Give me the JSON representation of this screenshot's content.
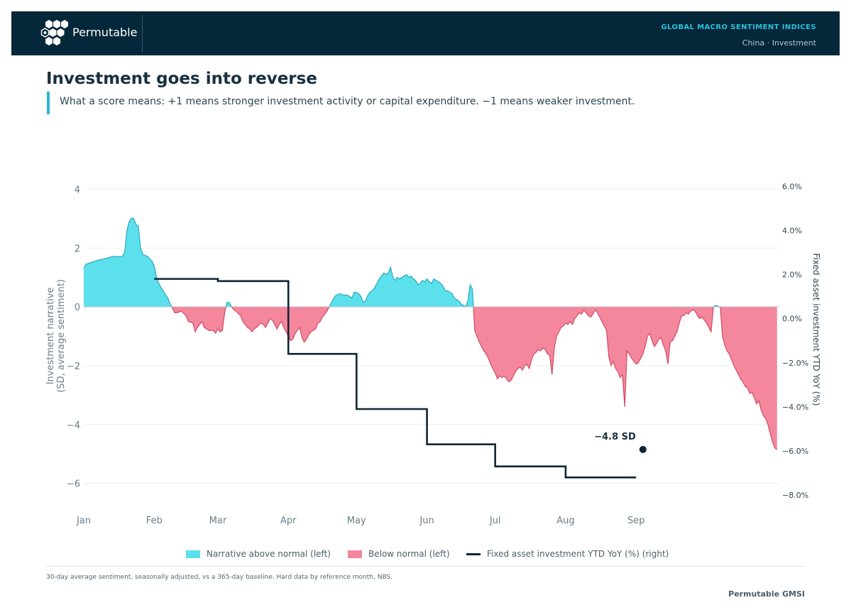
{
  "header": {
    "brand": "Permutable",
    "section_title": "GLOBAL MACRO SENTIMENT INDICES",
    "section_sub": "China · Investment"
  },
  "title": "Investment goes into reverse",
  "subtitle": "What a score means: +1 means stronger investment activity or capital expenditure. −1 means weaker investment.",
  "legend": {
    "above": "Narrative above normal (left)",
    "below": "Below normal (left)",
    "line": "Fixed asset investment YTD YoY (%) (right)"
  },
  "footnote": "30-day average sentiment, seasonally adjusted, vs a 365-day baseline. Hard data by reference month, NBS.",
  "credit": "Permutable GMSI",
  "colors": {
    "above": "#5ce0ec",
    "below": "#f4879b",
    "line": "#0e2635",
    "header_bg": "#05273a",
    "accent": "#2bc0dc"
  },
  "chart_data": {
    "type": "area",
    "ylabel": "Investment narrative\n(SD, average sentiment)",
    "y2label": "Fixed asset investment YTD YoY (%)",
    "ylim": [
      -7,
      5
    ],
    "y2lim": [
      -8.8,
      7.2
    ],
    "yticks": [
      "4",
      "2",
      "0",
      "−2",
      "−4",
      "−6"
    ],
    "y2ticks": [
      "6.0%",
      "4.0%",
      "2.0%",
      "0.0%",
      "−2.0%",
      "−4.0%",
      "−6.0%",
      "−8.0%"
    ],
    "months": [
      "Jan",
      "Feb",
      "Mar",
      "Apr",
      "May",
      "Jun",
      "Jul",
      "Aug",
      "Sep"
    ],
    "grid": true,
    "annotation": {
      "label": "−4.8 SD",
      "day": 246,
      "value": -4.85
    },
    "series": [
      {
        "name": "Narrative above normal (left)",
        "kind": "sentiment",
        "points": [
          [
            0,
            1.3
          ],
          [
            1,
            1.45
          ],
          [
            3,
            1.5
          ],
          [
            6,
            1.58
          ],
          [
            10,
            1.65
          ],
          [
            13,
            1.72
          ],
          [
            15,
            1.7
          ],
          [
            17,
            1.72
          ],
          [
            18,
            1.85
          ],
          [
            19,
            2.6
          ],
          [
            20,
            2.9
          ],
          [
            21,
            3.02
          ],
          [
            22,
            3.0
          ],
          [
            23,
            2.8
          ],
          [
            24,
            2.75
          ],
          [
            25,
            2.0
          ],
          [
            26,
            1.78
          ],
          [
            27,
            1.75
          ],
          [
            28,
            1.72
          ],
          [
            30,
            1.55
          ],
          [
            31,
            1.4
          ],
          [
            32,
            1.0
          ],
          [
            33,
            0.8
          ],
          [
            34,
            0.65
          ],
          [
            35,
            0.55
          ],
          [
            36,
            0.4
          ],
          [
            37,
            0.3
          ],
          [
            38,
            0.1
          ],
          [
            39,
            -0.05
          ],
          [
            40,
            -0.2
          ],
          [
            41,
            -0.2
          ],
          [
            43,
            -0.15
          ],
          [
            45,
            -0.3
          ],
          [
            46,
            -0.5
          ],
          [
            48,
            -0.55
          ],
          [
            49,
            -0.85
          ],
          [
            50,
            -0.7
          ],
          [
            51,
            -0.6
          ],
          [
            52,
            -0.5
          ],
          [
            53,
            -0.7
          ],
          [
            55,
            -0.8
          ],
          [
            57,
            -0.8
          ],
          [
            58,
            -0.9
          ],
          [
            59,
            -0.75
          ],
          [
            60,
            -0.85
          ],
          [
            61,
            -0.8
          ],
          [
            62,
            -0.2
          ],
          [
            63,
            0.15
          ],
          [
            64,
            0.15
          ],
          [
            65,
            0.0
          ],
          [
            66,
            -0.1
          ],
          [
            67,
            -0.15
          ],
          [
            69,
            -0.3
          ],
          [
            70,
            -0.5
          ],
          [
            71,
            -0.6
          ],
          [
            72,
            -0.7
          ],
          [
            73,
            -0.75
          ],
          [
            74,
            -0.85
          ],
          [
            75,
            -0.75
          ],
          [
            76,
            -0.7
          ],
          [
            78,
            -0.55
          ],
          [
            79,
            -0.6
          ],
          [
            80,
            -0.7
          ],
          [
            81,
            -0.55
          ],
          [
            82,
            -0.4
          ],
          [
            83,
            -0.45
          ],
          [
            84,
            -0.6
          ],
          [
            85,
            -0.75
          ],
          [
            86,
            -0.6
          ],
          [
            87,
            -0.5
          ],
          [
            88,
            -0.7
          ],
          [
            89,
            -0.85
          ],
          [
            90,
            -1.0
          ],
          [
            91,
            -1.15
          ],
          [
            92,
            -1.1
          ],
          [
            93,
            -0.9
          ],
          [
            94,
            -0.8
          ],
          [
            95,
            -0.7
          ],
          [
            96,
            -1.05
          ],
          [
            97,
            -1.2
          ],
          [
            98,
            -1.1
          ],
          [
            99,
            -0.95
          ],
          [
            100,
            -0.85
          ],
          [
            101,
            -0.8
          ],
          [
            102,
            -0.75
          ],
          [
            103,
            -0.55
          ],
          [
            104,
            -0.5
          ],
          [
            105,
            -0.35
          ],
          [
            106,
            -0.25
          ],
          [
            107,
            -0.15
          ],
          [
            108,
            0.0
          ],
          [
            109,
            0.15
          ],
          [
            110,
            0.3
          ],
          [
            111,
            0.4
          ],
          [
            112,
            0.42
          ],
          [
            113,
            0.45
          ],
          [
            114,
            0.4
          ],
          [
            116,
            0.4
          ],
          [
            117,
            0.35
          ],
          [
            118,
            0.3
          ],
          [
            119,
            0.5
          ],
          [
            120,
            0.48
          ],
          [
            121,
            0.45
          ],
          [
            122,
            0.35
          ],
          [
            123,
            0.15
          ],
          [
            124,
            0.2
          ],
          [
            125,
            0.4
          ],
          [
            126,
            0.5
          ],
          [
            127,
            0.55
          ],
          [
            128,
            0.65
          ],
          [
            129,
            0.8
          ],
          [
            130,
            0.95
          ],
          [
            131,
            1.05
          ],
          [
            132,
            1.15
          ],
          [
            133,
            1.1
          ],
          [
            134,
            1.15
          ],
          [
            135,
            1.35
          ],
          [
            136,
            1.0
          ],
          [
            137,
            0.9
          ],
          [
            138,
            1.0
          ],
          [
            139,
            0.95
          ],
          [
            140,
            1.0
          ],
          [
            141,
            1.05
          ],
          [
            142,
            1.1
          ],
          [
            143,
            1.0
          ],
          [
            144,
            1.05
          ],
          [
            145,
            0.95
          ],
          [
            146,
            0.9
          ],
          [
            147,
            0.75
          ],
          [
            148,
            0.8
          ],
          [
            149,
            0.9
          ],
          [
            150,
            0.85
          ],
          [
            151,
            0.95
          ],
          [
            152,
            0.85
          ],
          [
            153,
            0.8
          ],
          [
            154,
            0.95
          ],
          [
            155,
            0.9
          ],
          [
            156,
            0.85
          ],
          [
            157,
            0.8
          ],
          [
            158,
            0.7
          ],
          [
            159,
            0.55
          ],
          [
            160,
            0.55
          ],
          [
            161,
            0.5
          ],
          [
            162,
            0.45
          ],
          [
            163,
            0.3
          ],
          [
            164,
            0.25
          ],
          [
            165,
            0.2
          ],
          [
            166,
            0.1
          ],
          [
            167,
            0.05
          ],
          [
            168,
            0.0
          ],
          [
            169,
            0.2
          ],
          [
            170,
            0.75
          ],
          [
            171,
            0.6
          ],
          [
            172,
            -0.8
          ],
          [
            173,
            -1.0
          ],
          [
            174,
            -1.2
          ],
          [
            175,
            -1.35
          ],
          [
            176,
            -1.5
          ],
          [
            177,
            -1.6
          ],
          [
            178,
            -1.75
          ],
          [
            179,
            -1.95
          ],
          [
            180,
            -2.1
          ],
          [
            181,
            -2.25
          ],
          [
            182,
            -2.45
          ],
          [
            183,
            -2.35
          ],
          [
            184,
            -2.4
          ],
          [
            185,
            -2.35
          ],
          [
            186,
            -2.45
          ],
          [
            187,
            -2.55
          ],
          [
            188,
            -2.5
          ],
          [
            189,
            -2.35
          ],
          [
            190,
            -2.2
          ],
          [
            191,
            -2.1
          ],
          [
            192,
            -2.05
          ],
          [
            193,
            -2.15
          ],
          [
            194,
            -2.0
          ],
          [
            195,
            -1.95
          ],
          [
            196,
            -2.1
          ],
          [
            197,
            -1.8
          ],
          [
            198,
            -1.6
          ],
          [
            199,
            -1.55
          ],
          [
            200,
            -1.45
          ],
          [
            201,
            -1.5
          ],
          [
            202,
            -1.4
          ],
          [
            203,
            -1.45
          ],
          [
            204,
            -1.6
          ],
          [
            205,
            -1.65
          ],
          [
            206,
            -2.3
          ],
          [
            207,
            -1.4
          ],
          [
            208,
            -1.0
          ],
          [
            209,
            -0.85
          ],
          [
            210,
            -0.7
          ],
          [
            211,
            -0.65
          ],
          [
            212,
            -0.55
          ],
          [
            213,
            -0.6
          ],
          [
            214,
            -0.5
          ],
          [
            215,
            -0.6
          ],
          [
            216,
            -0.4
          ],
          [
            217,
            -0.3
          ],
          [
            218,
            -0.2
          ],
          [
            219,
            -0.25
          ],
          [
            220,
            -0.1
          ],
          [
            221,
            -0.2
          ],
          [
            222,
            -0.3
          ],
          [
            223,
            -0.35
          ],
          [
            224,
            -0.25
          ],
          [
            225,
            -0.1
          ],
          [
            226,
            -0.2
          ],
          [
            227,
            -0.35
          ],
          [
            228,
            -0.5
          ],
          [
            229,
            -0.65
          ],
          [
            230,
            -0.8
          ],
          [
            231,
            -1.7
          ],
          [
            232,
            -2.0
          ],
          [
            233,
            -1.85
          ],
          [
            234,
            -2.1
          ],
          [
            235,
            -2.2
          ],
          [
            236,
            -2.4
          ],
          [
            237,
            -2.3
          ],
          [
            238,
            -3.4
          ],
          [
            239,
            -1.5
          ],
          [
            240,
            -1.6
          ],
          [
            241,
            -1.75
          ],
          [
            242,
            -1.85
          ],
          [
            243,
            -1.95
          ],
          [
            244,
            -1.9
          ],
          [
            245,
            -1.75
          ],
          [
            246,
            -1.6
          ],
          [
            247,
            -1.35
          ],
          [
            248,
            -1.0
          ],
          [
            249,
            -0.9
          ],
          [
            250,
            -1.15
          ],
          [
            251,
            -1.35
          ],
          [
            252,
            -1.25
          ],
          [
            253,
            -1.1
          ],
          [
            254,
            -1.05
          ],
          [
            255,
            -1.3
          ],
          [
            256,
            -1.5
          ],
          [
            257,
            -1.95
          ],
          [
            258,
            -1.2
          ],
          [
            259,
            -1.15
          ],
          [
            260,
            -1.0
          ],
          [
            261,
            -0.85
          ],
          [
            262,
            -0.55
          ],
          [
            263,
            -0.3
          ],
          [
            264,
            -0.3
          ],
          [
            265,
            -0.2
          ],
          [
            266,
            -0.25
          ],
          [
            267,
            -0.15
          ],
          [
            268,
            -0.1
          ],
          [
            269,
            -0.15
          ],
          [
            270,
            -0.3
          ],
          [
            271,
            -0.4
          ],
          [
            272,
            -0.35
          ],
          [
            273,
            -0.45
          ],
          [
            274,
            -0.55
          ],
          [
            275,
            -0.7
          ],
          [
            276,
            -0.85
          ],
          [
            277,
            0.0
          ],
          [
            278,
            0.05
          ],
          [
            279,
            0.02
          ],
          [
            280,
            0.0
          ],
          [
            281,
            -1.0
          ],
          [
            282,
            -1.3
          ],
          [
            283,
            -1.5
          ],
          [
            284,
            -1.6
          ],
          [
            285,
            -1.8
          ],
          [
            286,
            -2.0
          ],
          [
            287,
            -2.15
          ],
          [
            288,
            -2.3
          ],
          [
            289,
            -2.45
          ],
          [
            290,
            -2.55
          ],
          [
            291,
            -2.7
          ],
          [
            292,
            -2.75
          ],
          [
            293,
            -2.95
          ],
          [
            294,
            -2.9
          ],
          [
            295,
            -3.1
          ],
          [
            296,
            -3.3
          ],
          [
            297,
            -3.2
          ],
          [
            298,
            -3.5
          ],
          [
            299,
            -3.7
          ],
          [
            300,
            -3.8
          ],
          [
            301,
            -4.0
          ],
          [
            302,
            -4.3
          ],
          [
            303,
            -4.6
          ],
          [
            304,
            -4.8
          ],
          [
            305,
            -4.85
          ]
        ]
      },
      {
        "name": "Fixed asset investment YTD YoY (%) (right)",
        "kind": "step",
        "points": [
          [
            31,
            1.8
          ],
          [
            59,
            1.8
          ],
          [
            59,
            1.7
          ],
          [
            90,
            1.7
          ],
          [
            90,
            -1.6
          ],
          [
            120,
            -1.6
          ],
          [
            120,
            -4.1
          ],
          [
            151,
            -4.1
          ],
          [
            151,
            -5.7
          ],
          [
            181,
            -5.7
          ],
          [
            181,
            -6.7
          ],
          [
            212,
            -6.7
          ],
          [
            212,
            -7.2
          ],
          [
            243,
            -7.2
          ]
        ]
      }
    ]
  }
}
